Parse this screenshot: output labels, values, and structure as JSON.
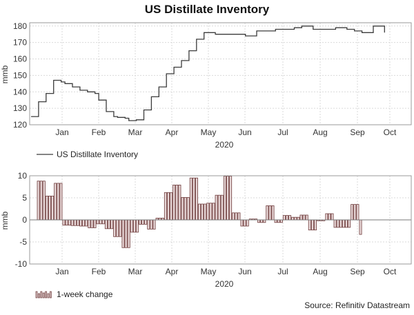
{
  "page": {
    "title": "US Distillate Inventory",
    "source": "Source: Refinitiv Datastream"
  },
  "chart_data": [
    {
      "type": "line",
      "name": "US Distillate Inventory",
      "ylabel": "mmb",
      "xlabel": "2020",
      "ylim": [
        120,
        182
      ],
      "yticks": [
        120,
        130,
        140,
        150,
        160,
        170,
        180
      ],
      "grid": true,
      "legend": "bottom-left",
      "months": [
        "Jan",
        "Feb",
        "Mar",
        "Apr",
        "May",
        "Jun",
        "Jul",
        "Aug",
        "Sep",
        "Oct"
      ],
      "x_weeks": [
        0,
        1,
        2,
        3,
        4,
        5,
        6,
        7,
        8,
        9,
        10,
        11,
        12,
        13,
        14,
        15,
        16,
        17,
        18,
        19,
        20,
        21,
        22,
        23,
        24,
        25,
        26,
        27,
        28,
        29,
        30,
        31,
        32,
        33,
        34,
        35,
        36,
        37,
        38,
        39
      ],
      "values": [
        125,
        125,
        134,
        134,
        139,
        139,
        147,
        147,
        146,
        145,
        145,
        143,
        143,
        141,
        141,
        140,
        140,
        139,
        135,
        135,
        128,
        128,
        125,
        124.5,
        124.5,
        124,
        122.5,
        122.5,
        123,
        123,
        129,
        129,
        137,
        137,
        143,
        143,
        151,
        151,
        155,
        155
      ]
    },
    {
      "type": "bar",
      "name": "1-week change",
      "ylabel": "mmb",
      "xlabel": "2020",
      "ylim": [
        -10,
        10
      ],
      "yticks": [
        -10,
        -5,
        0,
        5,
        10
      ],
      "grid": true,
      "legend": "bottom-left",
      "months": [
        "Jan",
        "Feb",
        "Mar",
        "Apr",
        "May",
        "Jun",
        "Jul",
        "Aug",
        "Sep",
        "Oct"
      ],
      "values": [
        8.8,
        8.8,
        8.8,
        5.4,
        5.4,
        5.4,
        8.3,
        8.3,
        8.3,
        -1.2,
        -1.2,
        -1.2,
        -1.3,
        -1.3,
        -1.3,
        -1.4,
        -1.4,
        -1.4,
        -1.8,
        -1.8,
        -1.8,
        -0.9,
        -0.9,
        -0.9,
        -2,
        -2,
        -2,
        -3.8,
        -3.8,
        -3.8,
        -6.3,
        -6.3,
        -6.3,
        -2.8,
        -2.8,
        -2.8,
        -1,
        -1,
        -1,
        -2.1,
        -2.1,
        -2.1,
        0.4,
        0.4,
        0.4,
        6.2,
        6.2,
        6.2,
        7.9,
        7.9,
        7.9,
        5.1,
        5.1,
        5.1,
        9.5,
        9.5,
        9.5,
        3.6,
        3.6,
        3.6,
        3.8,
        3.8,
        3.8,
        5.6,
        5.6,
        5.6,
        9.9,
        9.9,
        9.9,
        1.6,
        1.6,
        1.6,
        -1.4,
        -1.4,
        -1.4,
        0.2,
        0.2,
        0.2,
        -0.6,
        -0.6,
        -0.6,
        3.2,
        3.2,
        3.2,
        -0.6,
        -0.6,
        -0.6,
        1,
        1,
        1,
        0.6,
        0.6,
        0.6,
        1.1,
        1.1,
        1.1,
        -2.3,
        -2.3,
        -2.3,
        -0.2,
        -0.2,
        -0.2,
        1.4,
        1.4,
        1.4,
        -1.7,
        -1.7,
        -1.7,
        -1.7,
        -1.7,
        -1.7,
        3.5,
        3.5,
        3.5,
        -3.3
      ]
    }
  ]
}
